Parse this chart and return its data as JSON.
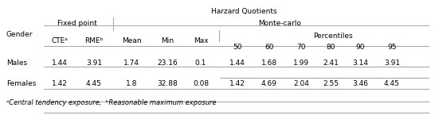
{
  "title": "Harzard Quotients",
  "col_gender": "Gender",
  "col_fixed_point": "Fixed point",
  "col_monte_carlo": "Monte-carlo",
  "col_percentiles": "Percentiles",
  "headers_row": [
    "CTEᵃ",
    "RMEᵇ",
    "Mean",
    "Min",
    "Max",
    "50",
    "60",
    "70",
    "80",
    "90",
    "95"
  ],
  "rows": [
    [
      "Males",
      "1.44",
      "3.91",
      "1.74",
      "23.16",
      "0.1",
      "1.44",
      "1.68",
      "1.99",
      "2.41",
      "3.14",
      "3.91"
    ],
    [
      "Females",
      "1.42",
      "4.45",
      "1.8",
      "32.88",
      "0.08",
      "1.42",
      "4.69",
      "2.04",
      "2.55",
      "3.46",
      "4.45"
    ]
  ],
  "footnote_a": "ᵃCentral tendency exposure,  ",
  "footnote_b": "ᵇReasonable maximum exposure",
  "background_color": "#ffffff",
  "line_color": "#aaaaaa",
  "text_color": "#000000",
  "font_size": 6.5,
  "footnote_font_size": 6.0
}
